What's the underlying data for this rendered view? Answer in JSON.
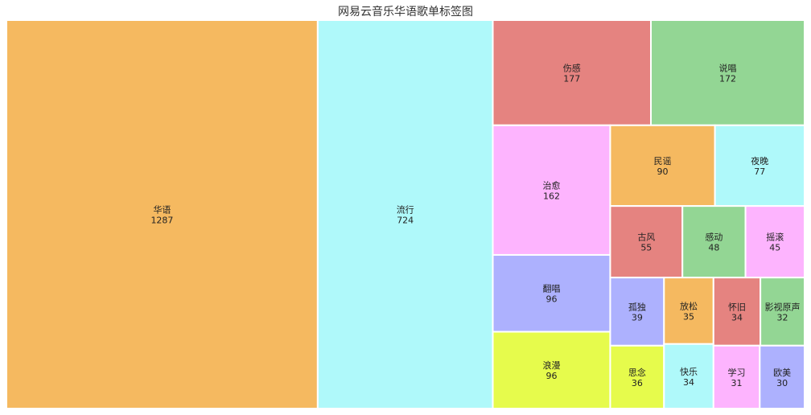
{
  "chart_data": {
    "type": "treemap",
    "title": "网易云音乐华语歌单标签图",
    "palette": [
      "#93d694",
      "#fdb4fe",
      "#adb1fe",
      "#e6fb4c",
      "#f5b960",
      "#aff9fa",
      "#e58380"
    ],
    "items": [
      {
        "label": "华语",
        "value": 1287,
        "color": "#f5b960"
      },
      {
        "label": "流行",
        "value": 724,
        "color": "#aff9fa"
      },
      {
        "label": "伤感",
        "value": 177,
        "color": "#e58380"
      },
      {
        "label": "说唱",
        "value": 172,
        "color": "#93d694"
      },
      {
        "label": "治愈",
        "value": 162,
        "color": "#fdb4fe"
      },
      {
        "label": "翻唱",
        "value": 96,
        "color": "#adb1fe"
      },
      {
        "label": "浪漫",
        "value": 96,
        "color": "#e6fb4c"
      },
      {
        "label": "民谣",
        "value": 90,
        "color": "#f5b960"
      },
      {
        "label": "夜晚",
        "value": 77,
        "color": "#aff9fa"
      },
      {
        "label": "古风",
        "value": 55,
        "color": "#e58380"
      },
      {
        "label": "感动",
        "value": 48,
        "color": "#93d694"
      },
      {
        "label": "摇滚",
        "value": 45,
        "color": "#fdb4fe"
      },
      {
        "label": "孤独",
        "value": 39,
        "color": "#adb1fe"
      },
      {
        "label": "思念",
        "value": 36,
        "color": "#e6fb4c"
      },
      {
        "label": "放松",
        "value": 35,
        "color": "#f5b960"
      },
      {
        "label": "快乐",
        "value": 34,
        "color": "#aff9fa"
      },
      {
        "label": "怀旧",
        "value": 34,
        "color": "#e58380"
      },
      {
        "label": "影视原声",
        "value": 32,
        "color": "#93d694"
      },
      {
        "label": "学习",
        "value": 31,
        "color": "#fdb4fe"
      },
      {
        "label": "欧美",
        "value": 30,
        "color": "#adb1fe"
      }
    ]
  }
}
